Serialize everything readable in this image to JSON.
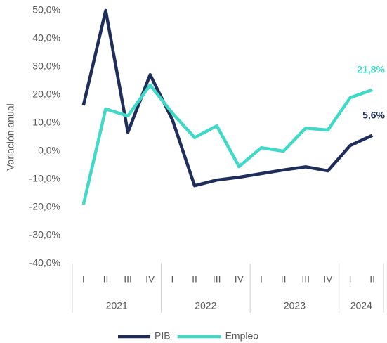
{
  "chart_data": {
    "type": "line",
    "y_label": "Variación anual",
    "categories": [
      "I",
      "II",
      "III",
      "IV",
      "I",
      "II",
      "III",
      "IV",
      "I",
      "II",
      "III",
      "IV",
      "I",
      "II"
    ],
    "x_groups": [
      {
        "label": "2021",
        "count": 4
      },
      {
        "label": "2022",
        "count": 4
      },
      {
        "label": "2023",
        "count": 4
      },
      {
        "label": "2024",
        "count": 2
      }
    ],
    "series": [
      {
        "name": "PIB",
        "color": "#1f2d5a",
        "values": [
          16.3,
          50,
          6.7,
          27.2,
          11.2,
          -12.3,
          -10.3,
          -9.3,
          -8,
          -6.7,
          -5.6,
          -7,
          2,
          5.6
        ],
        "value_labels": [
          null,
          null,
          null,
          null,
          null,
          null,
          null,
          null,
          null,
          null,
          null,
          null,
          null,
          "5,6%"
        ]
      },
      {
        "name": "Empleo",
        "color": "#40d9c8",
        "values": [
          -19,
          15,
          12.5,
          23.5,
          13.5,
          4.8,
          9,
          -5.5,
          1.2,
          0,
          8.2,
          7.5,
          19,
          21.8
        ],
        "value_labels": [
          null,
          null,
          null,
          null,
          null,
          null,
          null,
          null,
          null,
          null,
          null,
          null,
          null,
          "21,8%"
        ]
      }
    ],
    "ylim": [
      -40,
      50
    ],
    "yticks": [
      {
        "value": -40,
        "label": "-40,0%"
      },
      {
        "value": -30,
        "label": "-30,0%"
      },
      {
        "value": -20,
        "label": "-20,0%"
      },
      {
        "value": -10,
        "label": "-10,0%"
      },
      {
        "value": 0,
        "label": "0,0%"
      },
      {
        "value": 10,
        "label": "10,0%"
      },
      {
        "value": 20,
        "label": "20,0%"
      },
      {
        "value": 30,
        "label": "30,0%"
      },
      {
        "value": 40,
        "label": "40,0%"
      },
      {
        "value": 50,
        "label": "50,0%"
      }
    ],
    "legend": "bottom"
  }
}
